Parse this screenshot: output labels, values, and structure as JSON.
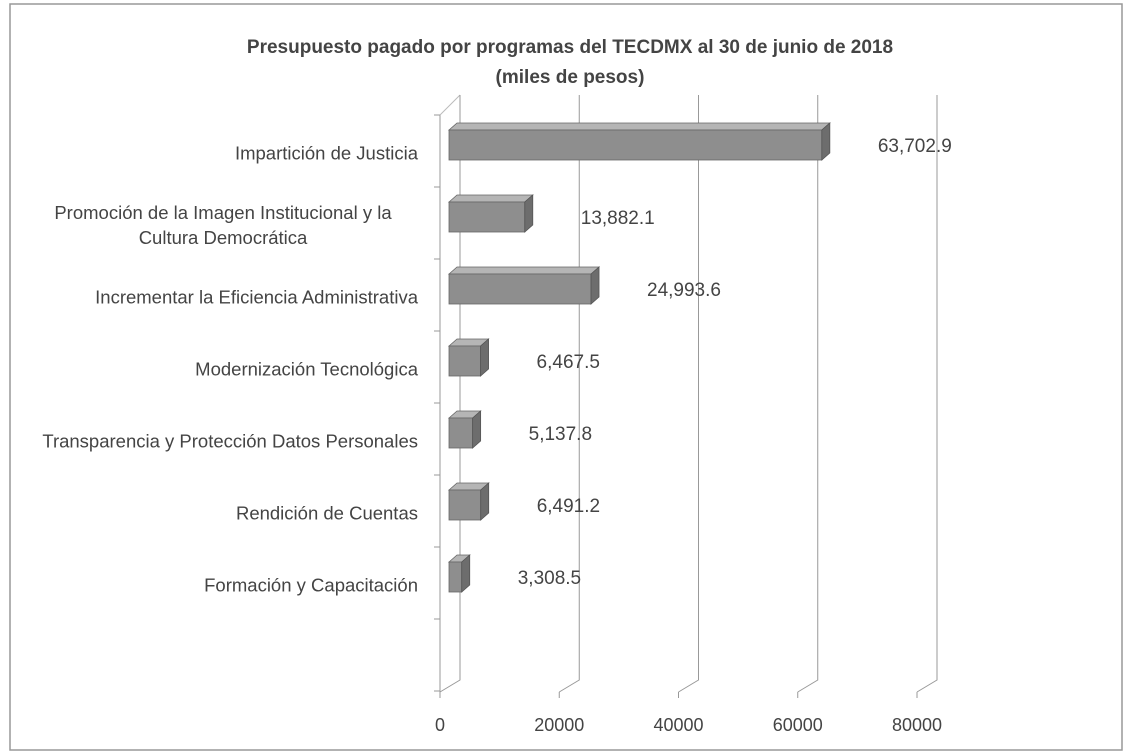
{
  "chart_data": {
    "type": "bar3d_horizontal",
    "title": "Presupuesto pagado por programas del TECDMX al 30 de junio de 2018",
    "subtitle": "(miles de pesos)",
    "categories": [
      "Impartición de Justicia",
      "Promoción de la Imagen Institucional y la Cultura Democrática",
      "Incrementar la Eficiencia Administrativa",
      "Modernización Tecnológica",
      "Transparencia y Protección Datos Personales",
      "Rendición de Cuentas",
      "Formación y Capacitación"
    ],
    "values": [
      63702.9,
      13882.1,
      24993.6,
      6467.5,
      5137.8,
      6491.2,
      3308.5
    ],
    "value_labels": [
      "63,702.9",
      "13,882.1",
      "24,993.6",
      "6,467.5",
      "5,137.8",
      "6,491.2",
      "3,308.5"
    ],
    "color": "#8e8e8e",
    "xlim": [
      0,
      80000
    ],
    "xticks": [
      0,
      20000,
      40000,
      60000,
      80000
    ],
    "grid": true
  }
}
